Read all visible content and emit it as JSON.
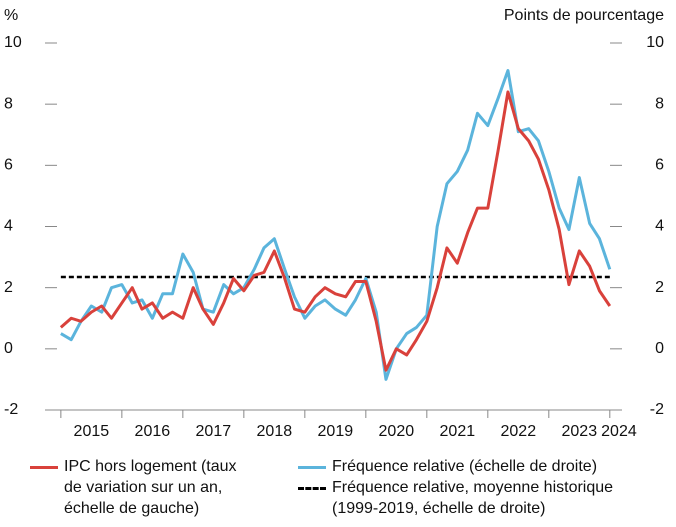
{
  "chart_data": {
    "type": "line",
    "y_label": "%",
    "y2_label": "Points de pourcentage",
    "x": [
      2015.0,
      2015.17,
      2015.33,
      2015.5,
      2015.67,
      2015.83,
      2016.0,
      2016.17,
      2016.33,
      2016.5,
      2016.67,
      2016.83,
      2017.0,
      2017.17,
      2017.33,
      2017.5,
      2017.67,
      2017.83,
      2018.0,
      2018.17,
      2018.33,
      2018.5,
      2018.67,
      2018.83,
      2019.0,
      2019.17,
      2019.33,
      2019.5,
      2019.67,
      2019.83,
      2020.0,
      2020.17,
      2020.33,
      2020.5,
      2020.67,
      2020.83,
      2021.0,
      2021.17,
      2021.33,
      2021.5,
      2021.67,
      2021.83,
      2022.0,
      2022.17,
      2022.33,
      2022.5,
      2022.67,
      2022.83,
      2023.0,
      2023.17,
      2023.33,
      2023.5,
      2023.67,
      2023.83,
      2024.0
    ],
    "series": [
      {
        "name": "IPC hors logement (taux\nde variation sur un an,\néchelle de gauche)",
        "color": "#d9413b",
        "axis": "y",
        "values": [
          0.7,
          1.0,
          0.9,
          1.2,
          1.4,
          1.0,
          1.5,
          2.0,
          1.3,
          1.5,
          1.0,
          1.2,
          1.0,
          2.0,
          1.3,
          0.8,
          1.5,
          2.3,
          1.9,
          2.4,
          2.5,
          3.2,
          2.3,
          1.3,
          1.2,
          1.7,
          2.0,
          1.8,
          1.7,
          2.2,
          2.2,
          0.9,
          -0.7,
          0.0,
          -0.2,
          0.3,
          0.9,
          2.0,
          3.3,
          2.8,
          3.8,
          4.6,
          4.6,
          6.5,
          8.4,
          7.2,
          6.8,
          6.2,
          5.2,
          3.9,
          2.1,
          3.2,
          2.7,
          1.9,
          1.4
        ]
      },
      {
        "name": "Fréquence relative (échelle de droite)",
        "color": "#5bb4dc",
        "axis": "y2",
        "values": [
          0.5,
          0.3,
          0.9,
          1.4,
          1.2,
          2.0,
          2.1,
          1.5,
          1.6,
          1.0,
          1.8,
          1.8,
          3.1,
          2.5,
          1.3,
          1.2,
          2.1,
          1.8,
          2.0,
          2.6,
          3.3,
          3.6,
          2.6,
          1.7,
          1.0,
          1.4,
          1.6,
          1.3,
          1.1,
          1.6,
          2.3,
          1.2,
          -1.0,
          0.0,
          0.5,
          0.7,
          1.1,
          4.0,
          5.4,
          5.8,
          6.5,
          7.7,
          7.3,
          8.2,
          9.1,
          7.1,
          7.2,
          6.8,
          5.8,
          4.6,
          3.9,
          5.6,
          4.1,
          3.6,
          2.6
        ]
      }
    ],
    "hline": {
      "name": "Fréquence relative, moyenne historique\n(1999-2019, échelle de droite)",
      "value": 2.35,
      "color": "#000000",
      "dashed": true,
      "axis": "y2"
    },
    "xlim": [
      2014.74,
      2024.2
    ],
    "xtick_marks": [
      2015,
      2016,
      2017,
      2018,
      2019,
      2020,
      2021,
      2022,
      2023,
      2024
    ],
    "xticks": [
      {
        "value": 2015.5,
        "label": "2015"
      },
      {
        "value": 2016.5,
        "label": "2016"
      },
      {
        "value": 2017.5,
        "label": "2017"
      },
      {
        "value": 2018.5,
        "label": "2018"
      },
      {
        "value": 2019.5,
        "label": "2019"
      },
      {
        "value": 2020.5,
        "label": "2020"
      },
      {
        "value": 2021.5,
        "label": "2021"
      },
      {
        "value": 2022.5,
        "label": "2022"
      },
      {
        "value": 2023.5,
        "label": "2023"
      },
      {
        "value": 2024.15,
        "label": "2024"
      }
    ],
    "ylim": [
      -2,
      10
    ],
    "yticks": [
      -2,
      0,
      2,
      4,
      6,
      8,
      10
    ],
    "y2lim": [
      -2,
      10
    ],
    "y2ticks": [
      -2,
      0,
      2,
      4,
      6,
      8,
      10
    ]
  }
}
